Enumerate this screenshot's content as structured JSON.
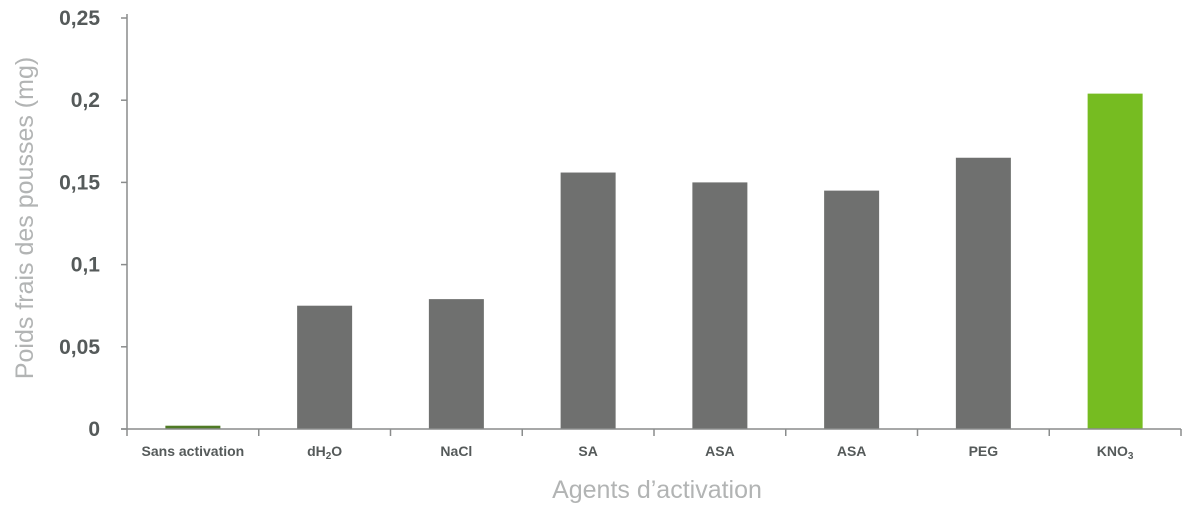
{
  "chart_data": {
    "type": "bar",
    "xlabel": "Agents d’activation",
    "ylabel": "Poids frais des pousses (mg)",
    "ylim": [
      0,
      0.25
    ],
    "yticks": [
      0,
      0.05,
      0.1,
      0.15,
      0.2,
      0.25
    ],
    "ytick_labels": [
      "0",
      "0,05",
      "0,1",
      "0,15",
      "0,2",
      "0,25"
    ],
    "categories": [
      {
        "text": "Sans activation",
        "sub": "",
        "post": ""
      },
      {
        "text": "dH",
        "sub": "2",
        "post": "O"
      },
      {
        "text": "NaCl",
        "sub": "",
        "post": ""
      },
      {
        "text": "SA",
        "sub": "",
        "post": ""
      },
      {
        "text": "ASA",
        "sub": "",
        "post": ""
      },
      {
        "text": "ASA",
        "sub": "",
        "post": ""
      },
      {
        "text": "PEG",
        "sub": "",
        "post": ""
      },
      {
        "text": "KNO",
        "sub": "3",
        "post": ""
      }
    ],
    "values": [
      0.002,
      0.075,
      0.079,
      0.156,
      0.15,
      0.145,
      0.165,
      0.204
    ],
    "colors": [
      "#4f7a25",
      "#6f706f",
      "#6f706f",
      "#6f706f",
      "#6f706f",
      "#6f706f",
      "#6f706f",
      "#76bc21"
    ],
    "axis_color": "#8a8c8c",
    "grid": false
  }
}
